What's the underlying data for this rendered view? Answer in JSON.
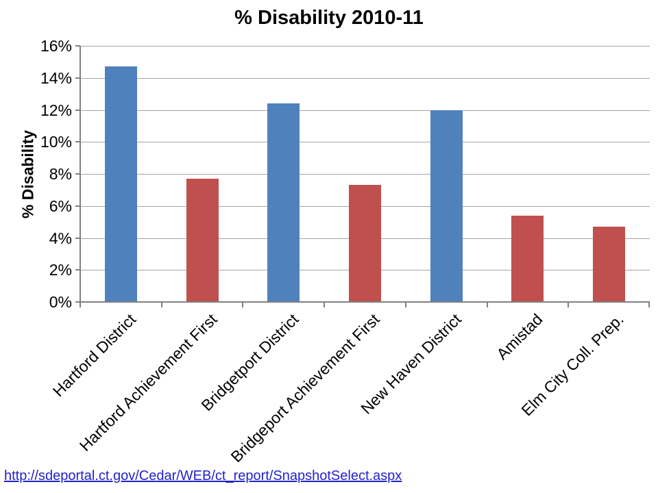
{
  "title": "% Disability 2010-11",
  "chart_data": {
    "type": "bar",
    "title": "% Disability 2010-11",
    "xlabel": "",
    "ylabel": "% Disability",
    "ylim": [
      0,
      16
    ],
    "ytick_step": 2,
    "ytick_labels": [
      "0%",
      "2%",
      "4%",
      "6%",
      "8%",
      "10%",
      "12%",
      "14%",
      "16%"
    ],
    "grid": true,
    "legend_position": "none",
    "categories": [
      "Hartford District",
      "Hartford Achievement First",
      "Bridgetport District",
      "Bridgeport Achievement First",
      "New Haven District",
      "Amistad",
      "Elm City Coll. Prep."
    ],
    "values": [
      14.7,
      7.7,
      12.4,
      7.3,
      12.0,
      5.4,
      4.7
    ],
    "bar_colors": [
      "#4F81BD",
      "#C0504D",
      "#4F81BD",
      "#C0504D",
      "#4F81BD",
      "#C0504D",
      "#C0504D"
    ],
    "colors": {
      "district_blue": "#4F81BD",
      "charter_red": "#C0504D",
      "gridline": "#A3A3A3",
      "axis": "#808080",
      "text": "#000000"
    }
  },
  "footer": {
    "link_text": "http://sdeportal.ct.gov/Cedar/WEB/ct_report/SnapshotSelect.aspx",
    "link_color": "#2121CC"
  }
}
